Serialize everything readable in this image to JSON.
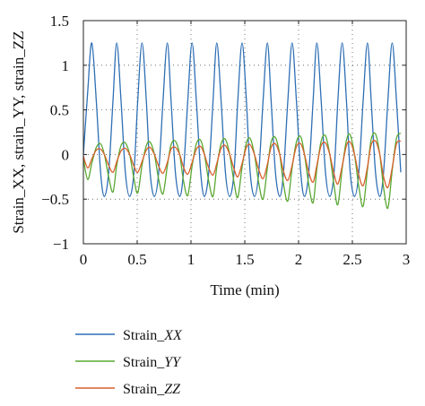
{
  "chart_data": {
    "type": "line",
    "xlabel": "Time (min)",
    "ylabel": "Strain_XX, strain_YY, strain_ZZ",
    "xlim": [
      0,
      3
    ],
    "ylim": [
      -1,
      1.5
    ],
    "xticks": [
      0,
      0.5,
      1,
      1.5,
      2,
      2.5,
      3
    ],
    "xtick_labels": [
      "0",
      "0.5",
      "1",
      "1.5",
      "2",
      "2.5",
      "3"
    ],
    "yticks": [
      -1,
      -0.5,
      0,
      0.5,
      1,
      1.5
    ],
    "ytick_labels": [
      "−1",
      "−0.5",
      "0",
      "0.5",
      "1",
      "1.5"
    ],
    "grid": "dotted",
    "legend_position": "bottom-left-below-plot",
    "x": [
      0,
      0.04,
      0.078,
      0.12,
      0.16,
      0.195,
      0.235,
      0.275,
      0.31,
      0.35,
      0.39,
      0.43,
      0.47,
      0.505,
      0.545,
      0.585,
      0.62,
      0.66,
      0.7,
      0.74,
      0.78,
      0.815,
      0.855,
      0.895,
      0.93,
      0.97,
      1.01,
      1.05,
      1.09,
      1.125,
      1.165,
      1.205,
      1.24,
      1.28,
      1.32,
      1.36,
      1.4,
      1.435,
      1.475,
      1.515,
      1.55,
      1.59,
      1.63,
      1.67,
      1.71,
      1.745,
      1.785,
      1.825,
      1.86,
      1.9,
      1.94,
      1.98,
      2.02,
      2.055,
      2.095,
      2.135,
      2.17,
      2.21,
      2.25,
      2.29,
      2.33,
      2.365,
      2.405,
      2.445,
      2.48,
      2.52,
      2.56,
      2.6,
      2.64,
      2.675,
      2.715,
      2.755,
      2.79,
      2.83,
      2.87,
      2.91,
      2.95
    ],
    "series": [
      {
        "name": "Strain_XX",
        "color": "#2e6fb5",
        "values": [
          0,
          0.7,
          1.25,
          0.6,
          -0.2,
          -0.47,
          -0.2,
          0.6,
          1.25,
          0.6,
          -0.2,
          -0.47,
          -0.2,
          0.6,
          1.25,
          0.6,
          -0.2,
          -0.47,
          -0.2,
          0.6,
          1.25,
          0.6,
          -0.2,
          -0.47,
          -0.2,
          0.6,
          1.25,
          0.6,
          -0.2,
          -0.47,
          -0.2,
          0.6,
          1.25,
          0.6,
          -0.2,
          -0.47,
          -0.2,
          0.6,
          1.25,
          0.6,
          -0.2,
          -0.47,
          -0.2,
          0.6,
          1.25,
          0.6,
          -0.2,
          -0.47,
          -0.2,
          0.6,
          1.25,
          0.6,
          -0.2,
          -0.47,
          -0.2,
          0.6,
          1.25,
          0.6,
          -0.2,
          -0.47,
          -0.2,
          0.6,
          1.25,
          0.6,
          -0.2,
          -0.47,
          -0.2,
          0.6,
          1.25,
          0.6,
          -0.2,
          -0.47,
          -0.2,
          0.6,
          1.25,
          0.6,
          -0.2
        ]
      },
      {
        "name": "Strain_YY",
        "color": "#5aa832",
        "values": [
          -0.05,
          -0.28,
          -0.1,
          0.08,
          0.12,
          0.0,
          -0.25,
          -0.42,
          -0.12,
          0.1,
          0.13,
          0.0,
          -0.27,
          -0.43,
          -0.12,
          0.1,
          0.14,
          0.0,
          -0.28,
          -0.44,
          -0.13,
          0.11,
          0.15,
          0.0,
          -0.29,
          -0.46,
          -0.13,
          0.12,
          0.16,
          0.0,
          -0.3,
          -0.47,
          -0.14,
          0.12,
          0.17,
          0.0,
          -0.31,
          -0.48,
          -0.14,
          0.13,
          0.18,
          0.0,
          -0.32,
          -0.5,
          -0.15,
          0.14,
          0.19,
          0.0,
          -0.33,
          -0.52,
          -0.15,
          0.14,
          0.2,
          0.0,
          -0.34,
          -0.54,
          -0.16,
          0.15,
          0.21,
          0.0,
          -0.35,
          -0.56,
          -0.16,
          0.16,
          0.22,
          0.0,
          -0.36,
          -0.58,
          -0.17,
          0.17,
          0.23,
          0.0,
          -0.37,
          -0.6,
          -0.18,
          0.18,
          0.24
        ]
      },
      {
        "name": "Strain_ZZ",
        "color": "#d9602b",
        "values": [
          -0.02,
          -0.15,
          -0.05,
          0.05,
          0.06,
          0.0,
          -0.12,
          -0.2,
          -0.08,
          0.04,
          0.07,
          0.0,
          -0.13,
          -0.2,
          -0.08,
          0.05,
          0.08,
          0.0,
          -0.13,
          -0.21,
          -0.09,
          0.06,
          0.08,
          0.0,
          -0.14,
          -0.22,
          -0.09,
          0.06,
          0.09,
          0.0,
          -0.15,
          -0.23,
          -0.1,
          0.07,
          0.1,
          0.0,
          -0.16,
          -0.25,
          -0.1,
          0.08,
          0.11,
          0.0,
          -0.17,
          -0.27,
          -0.11,
          0.08,
          0.12,
          0.0,
          -0.19,
          -0.29,
          -0.12,
          0.09,
          0.12,
          0.0,
          -0.2,
          -0.31,
          -0.12,
          0.1,
          0.13,
          0.0,
          -0.22,
          -0.33,
          -0.13,
          0.1,
          0.14,
          0.0,
          -0.23,
          -0.35,
          -0.14,
          0.11,
          0.15,
          0.0,
          -0.25,
          -0.37,
          -0.15,
          0.12,
          0.15
        ]
      }
    ]
  }
}
